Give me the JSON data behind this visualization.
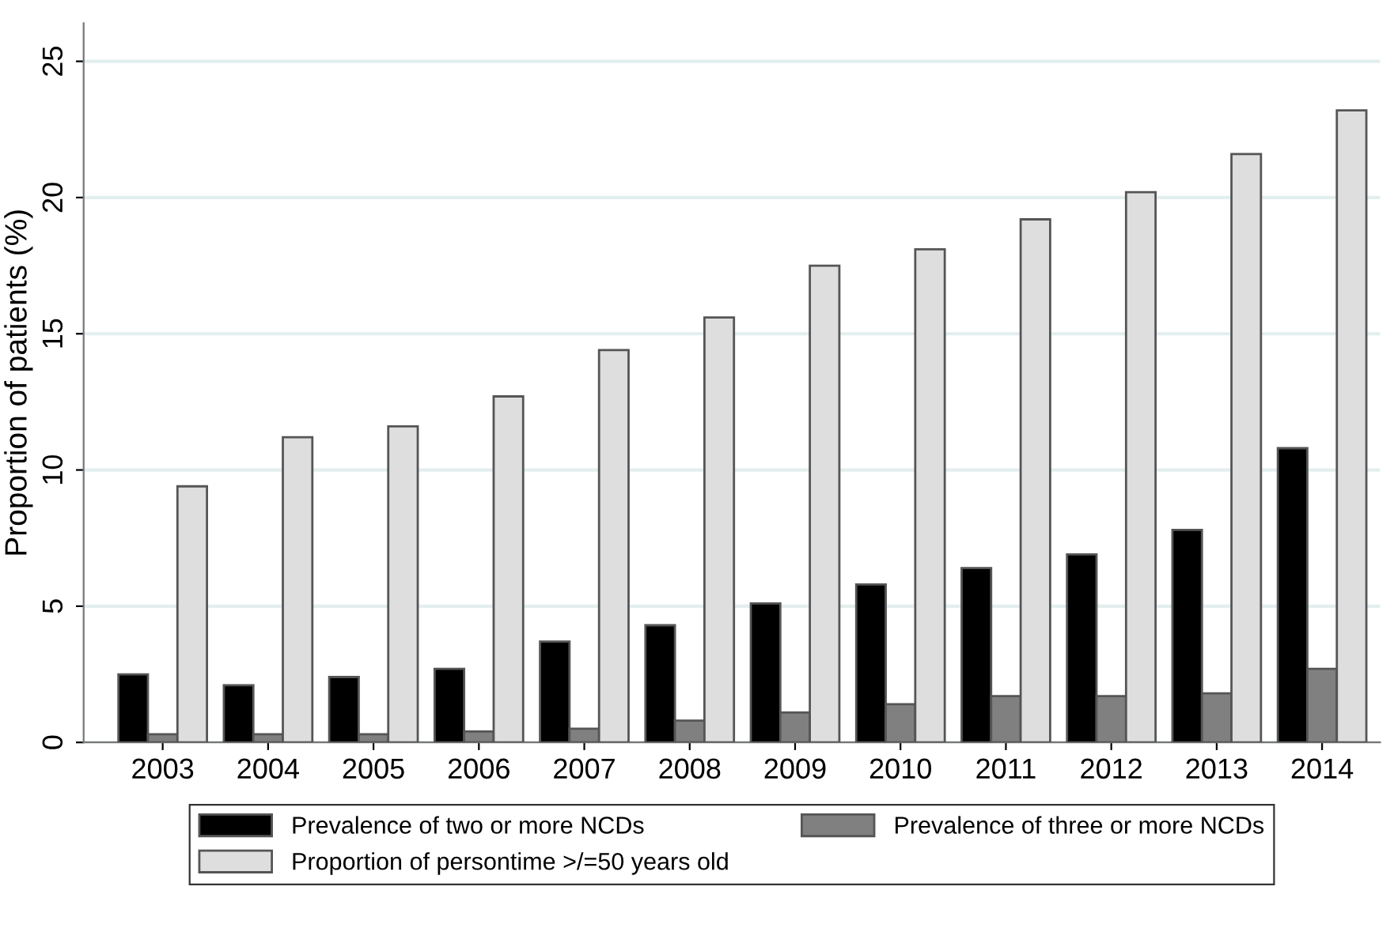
{
  "chart_data": {
    "type": "bar",
    "ylabel": "Proportion of patients (%)",
    "categories": [
      "2003",
      "2004",
      "2005",
      "2006",
      "2007",
      "2008",
      "2009",
      "2010",
      "2011",
      "2012",
      "2013",
      "2014"
    ],
    "series": [
      {
        "name": "Prevalence of two or more NCDs",
        "color": "#000000",
        "values": [
          2.5,
          2.1,
          2.4,
          2.7,
          3.7,
          4.3,
          5.1,
          5.8,
          6.4,
          6.9,
          7.8,
          10.8
        ]
      },
      {
        "name": "Prevalence of three or more NCDs",
        "color": "#808080",
        "values": [
          0.3,
          0.3,
          0.3,
          0.4,
          0.5,
          0.8,
          1.1,
          1.4,
          1.7,
          1.7,
          1.8,
          2.7
        ]
      },
      {
        "name": "Proportion of persontime >/=50 years old",
        "color": "#dedede",
        "values": [
          9.4,
          11.2,
          11.6,
          12.7,
          14.4,
          15.6,
          17.5,
          18.1,
          19.2,
          20.2,
          21.6,
          23.2
        ]
      }
    ],
    "ylim": [
      0,
      26.4
    ],
    "yticks": [
      0,
      5,
      10,
      15,
      20,
      25
    ],
    "grid": "y",
    "legend": "bottom"
  }
}
